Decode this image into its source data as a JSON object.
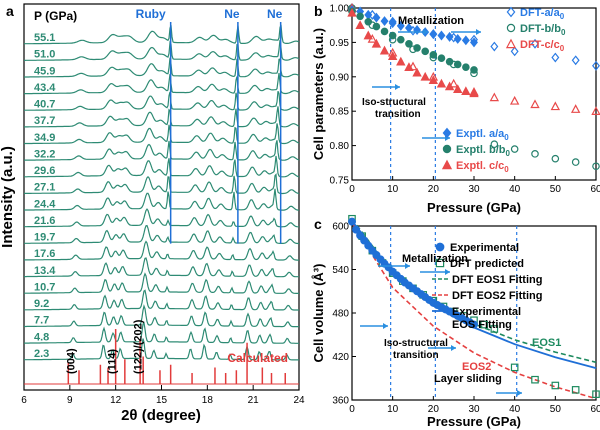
{
  "colors": {
    "teal": "#2e8b74",
    "ruby_ne": "#1f6fd6",
    "calc": "#e23b3b",
    "dft_a": "#2a7be4",
    "dft_b": "#25806c",
    "dft_c": "#e84a4a",
    "eos1": "#1d8a5f",
    "eos2": "#e54040",
    "expt_eos": "#1f6fd6",
    "dash_vline": "#2a7be4",
    "arrow": "#2a8fe0"
  },
  "chart_data": [
    {
      "type": "line",
      "panel_label": "a",
      "xlabel": "2θ (degree)",
      "ylabel": "Intensity (a.u.)",
      "xlim": [
        6,
        24
      ],
      "x_ticks": [
        "6",
        "9",
        "12",
        "15",
        "18",
        "21",
        "24"
      ],
      "pressure_header": "P (GPa)",
      "pressures": [
        "55.1",
        "51.0",
        "45.9",
        "43.4",
        "40.7",
        "37.7",
        "34.9",
        "32.2",
        "29.6",
        "27.1",
        "24.4",
        "21.6",
        "19.7",
        "17.6",
        "13.4",
        "10.7",
        "9.2",
        "7.7",
        "4.8",
        "2.3"
      ],
      "calculated_label": "Calculated",
      "calc_peaks_2theta": [
        8.9,
        9.6,
        11.0,
        11.5,
        12.0,
        12.6,
        13.6,
        13.8,
        14.9,
        15.6,
        17.0,
        18.5,
        19.2,
        19.9,
        20.6,
        21.6,
        22.2,
        23.1
      ],
      "calc_peak_rel_intensity": [
        0.4,
        0.25,
        0.35,
        0.3,
        1.0,
        0.45,
        0.8,
        0.5,
        0.25,
        0.35,
        0.2,
        0.3,
        0.2,
        0.25,
        0.75,
        0.3,
        0.2,
        0.2
      ],
      "hkl_labels": [
        "(004)",
        "(114)",
        "(122)/(202)"
      ],
      "hkl_positions_2theta": [
        9.3,
        12.0,
        13.7
      ],
      "marker_lines": [
        {
          "label": "Ruby",
          "x_top": 15.6,
          "x_bottom": 15.3
        },
        {
          "label": "Ne",
          "x_top": 20.0,
          "x_bottom": 19.5
        },
        {
          "label": "Ne",
          "x_top": 22.8,
          "x_bottom": 22.1
        }
      ]
    },
    {
      "type": "scatter",
      "panel_label": "b",
      "xlabel": "Pressure (GPa)",
      "ylabel": "Cell parameters (a.u.)",
      "xlim": [
        0,
        60
      ],
      "ylim": [
        0.75,
        1.0
      ],
      "x_ticks": [
        "0",
        "10",
        "20",
        "30",
        "40",
        "50",
        "60"
      ],
      "y_ticks": [
        "0.75",
        "0.80",
        "0.85",
        "0.90",
        "0.95",
        "1.00"
      ],
      "annotations": [
        "Metallization",
        "Iso-structural\ntransition"
      ],
      "vlines_x": [
        9.5,
        20.5
      ],
      "series": [
        {
          "name": "DFT-a/a₀",
          "marker": "diamond-open",
          "x": [
            0,
            5,
            10,
            15,
            20,
            25,
            30,
            35,
            40,
            45,
            50,
            55,
            60
          ],
          "y": [
            1.0,
            0.99,
            0.98,
            0.967,
            0.962,
            0.957,
            0.954,
            0.944,
            0.937,
            0.948,
            0.928,
            0.924,
            0.916
          ]
        },
        {
          "name": "DFT-b/b₀",
          "marker": "circle-open",
          "x": [
            0,
            5,
            10,
            15,
            20,
            25,
            30,
            35,
            40,
            45,
            50,
            55,
            60
          ],
          "y": [
            1.0,
            0.975,
            0.954,
            0.94,
            0.928,
            0.918,
            0.905,
            0.802,
            0.795,
            0.788,
            0.781,
            0.776,
            0.77
          ]
        },
        {
          "name": "DFT-c/c₀",
          "marker": "triangle-open",
          "x": [
            0,
            5,
            10,
            15,
            20,
            25,
            30,
            35,
            40,
            45,
            50,
            55,
            60
          ],
          "y": [
            1.0,
            0.955,
            0.935,
            0.915,
            0.9,
            0.89,
            0.878,
            0.87,
            0.865,
            0.86,
            0.857,
            0.853,
            0.85
          ]
        },
        {
          "name": "Exptl. a/a₀",
          "marker": "diamond-filled",
          "x": [
            0,
            2,
            4,
            6,
            8,
            10,
            12,
            14,
            16,
            18,
            20,
            22,
            24,
            26,
            28,
            30
          ],
          "y": [
            0.997,
            0.995,
            0.99,
            0.986,
            0.981,
            0.978,
            0.974,
            0.971,
            0.968,
            0.965,
            0.962,
            0.96,
            0.958,
            0.955,
            0.953,
            0.95
          ]
        },
        {
          "name": "Exptl. b/b₀",
          "marker": "circle-filled",
          "x": [
            0,
            2,
            4,
            6,
            8,
            10,
            12,
            14,
            16,
            18,
            20,
            22,
            24,
            26,
            28,
            30
          ],
          "y": [
            0.995,
            0.988,
            0.98,
            0.973,
            0.966,
            0.96,
            0.954,
            0.948,
            0.942,
            0.937,
            0.932,
            0.927,
            0.922,
            0.918,
            0.914,
            0.91
          ]
        },
        {
          "name": "Exptl. c/c₀",
          "marker": "triangle-filled",
          "x": [
            0,
            2,
            4,
            6,
            8,
            10,
            12,
            14,
            16,
            18,
            20,
            22,
            24,
            26,
            28,
            30
          ],
          "y": [
            0.993,
            0.975,
            0.96,
            0.948,
            0.938,
            0.93,
            0.922,
            0.914,
            0.906,
            0.9,
            0.895,
            0.89,
            0.886,
            0.882,
            0.879,
            0.876
          ]
        }
      ]
    },
    {
      "type": "scatter",
      "panel_label": "c",
      "xlabel": "Pressure (GPa)",
      "ylabel": "Cell volume (Å³)",
      "xlim": [
        0,
        60
      ],
      "ylim": [
        360,
        600
      ],
      "x_ticks": [
        "0",
        "10",
        "20",
        "30",
        "40",
        "50",
        "60"
      ],
      "y_ticks": [
        "360",
        "420",
        "480",
        "540",
        "600"
      ],
      "annotations": [
        "Metallization",
        "Iso-structural\ntransition",
        "Layer sliding",
        "EOS1",
        "EOS2"
      ],
      "vlines_x": [
        9.5,
        20.5,
        40.5
      ],
      "series": [
        {
          "name": "Experimental",
          "marker": "circle-filled",
          "x": [
            0,
            1,
            2,
            3,
            4,
            5,
            6,
            7,
            8,
            9,
            10,
            11,
            12,
            13,
            14,
            15,
            16,
            17,
            18,
            19,
            20,
            21,
            22,
            23,
            24,
            25,
            26,
            27,
            28,
            29,
            30
          ],
          "y": [
            606,
            595,
            587,
            580,
            573,
            566,
            560,
            554,
            548,
            543,
            537,
            532,
            527,
            522,
            518,
            514,
            510,
            506,
            502,
            498,
            494,
            491,
            488,
            485,
            482,
            479,
            476,
            473,
            470,
            467,
            464
          ]
        },
        {
          "name": "DFT predicted",
          "marker": "square-open",
          "x": [
            0,
            2.5,
            5,
            7.5,
            10,
            12.5,
            15,
            17.5,
            20,
            22.5,
            25,
            27.5,
            30,
            32.5,
            35,
            40,
            45,
            50,
            55,
            60
          ],
          "y": [
            610,
            586,
            566,
            549,
            535,
            524,
            514,
            505,
            497,
            489,
            482,
            476,
            470,
            464,
            458,
            405,
            388,
            380,
            374,
            368
          ]
        },
        {
          "name": "DFT EOS1 Fitting",
          "line": "dashed",
          "x": [
            0,
            10,
            20,
            30,
            40,
            50,
            60
          ],
          "y": [
            610,
            535,
            493,
            465,
            443,
            426,
            412
          ]
        },
        {
          "name": "DFT EOS2 Fitting",
          "line": "dashed",
          "x": [
            0,
            10,
            20,
            30,
            40,
            50,
            60
          ],
          "y": [
            605,
            515,
            462,
            425,
            398,
            378,
            362
          ]
        },
        {
          "name": "Experimental\nEOS Fitting",
          "line": "solid",
          "x": [
            0,
            10,
            20,
            30,
            40,
            50,
            60
          ],
          "y": [
            607,
            535,
            490,
            460,
            437,
            419,
            404
          ]
        }
      ]
    }
  ]
}
